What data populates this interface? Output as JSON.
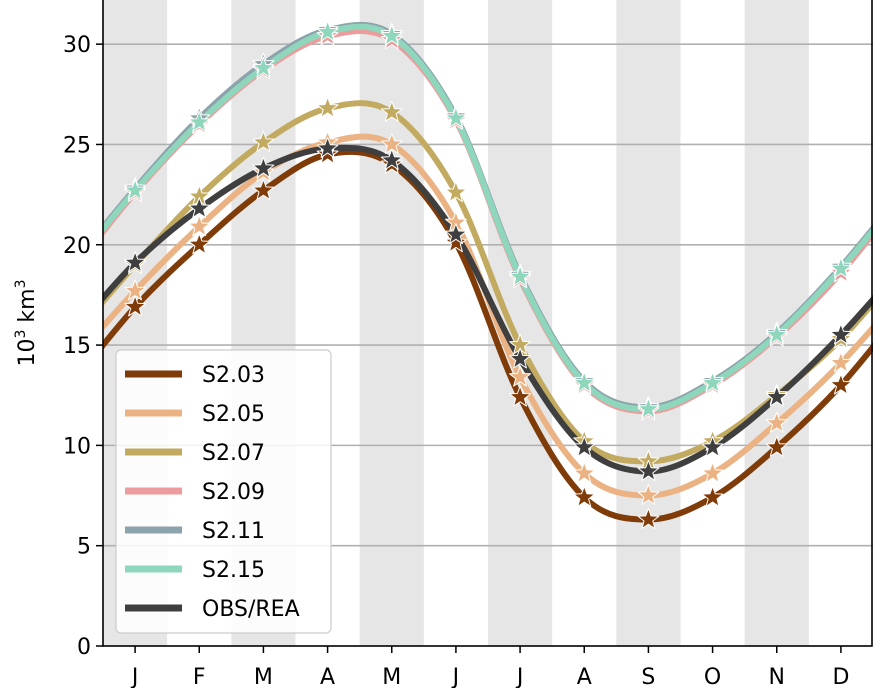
{
  "chart_data": {
    "type": "line",
    "ylabel_base": "10",
    "ylabel_exp": "3",
    "ylabel_unit": " km",
    "ylabel_unit_exp": "3",
    "categories": [
      "J",
      "F",
      "M",
      "A",
      "M",
      "J",
      "J",
      "A",
      "S",
      "O",
      "N",
      "D"
    ],
    "yticks": [
      0,
      5,
      10,
      15,
      20,
      25,
      30
    ],
    "ylim": [
      0,
      32.4
    ],
    "xlim": [
      0,
      12
    ],
    "grid": "horizontal",
    "legend": "bottom-left",
    "series": [
      {
        "name": "S2.03",
        "color": "#7f3b08",
        "values": [
          16.9,
          20.0,
          22.7,
          24.5,
          24.0,
          20.1,
          12.4,
          7.4,
          6.3,
          7.4,
          9.9,
          13.0
        ]
      },
      {
        "name": "S2.05",
        "color": "#ebb383",
        "values": [
          17.7,
          20.9,
          23.6,
          25.1,
          25.0,
          21.1,
          13.4,
          8.6,
          7.5,
          8.6,
          11.1,
          14.1
        ]
      },
      {
        "name": "S2.07",
        "color": "#c2ab61",
        "values": [
          19.0,
          22.4,
          25.1,
          26.8,
          26.6,
          22.6,
          15.0,
          10.2,
          9.2,
          10.2,
          12.5,
          15.3
        ]
      },
      {
        "name": "S2.09",
        "color": "#ec9c9c",
        "values": [
          22.6,
          26.0,
          28.7,
          30.4,
          30.2,
          26.2,
          18.3,
          13.0,
          11.7,
          13.0,
          15.4,
          18.6
        ]
      },
      {
        "name": "S2.11",
        "color": "#8da3ac",
        "values": [
          22.8,
          26.3,
          29.0,
          30.7,
          30.5,
          26.4,
          18.5,
          13.2,
          11.9,
          13.2,
          15.6,
          18.9
        ]
      },
      {
        "name": "S2.15",
        "color": "#8ed7bc",
        "values": [
          22.7,
          26.1,
          28.8,
          30.6,
          30.4,
          26.3,
          18.4,
          13.1,
          11.8,
          13.1,
          15.5,
          18.8
        ]
      },
      {
        "name": "OBS/REA",
        "color": "#3f3f3f",
        "values": [
          19.1,
          21.8,
          23.8,
          24.8,
          24.2,
          20.5,
          14.3,
          9.9,
          8.7,
          9.9,
          12.4,
          15.5
        ]
      }
    ]
  }
}
